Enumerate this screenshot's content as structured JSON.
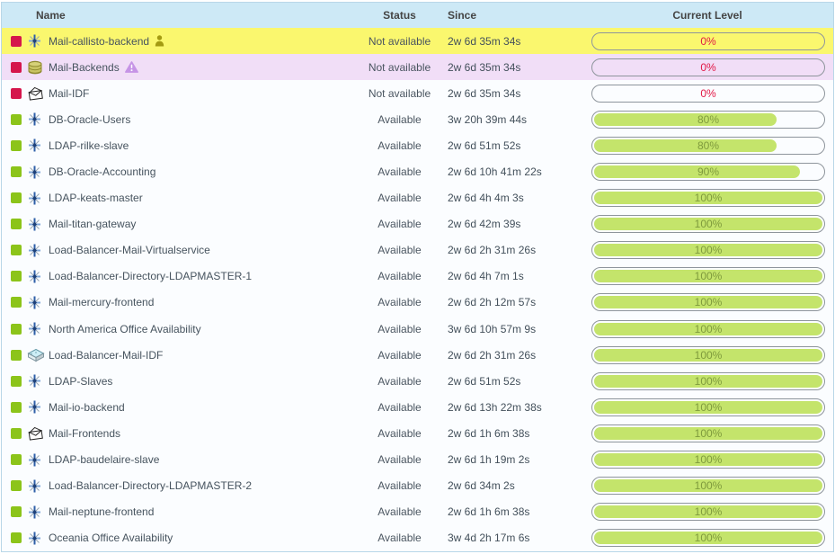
{
  "header": {
    "name": "Name",
    "status": "Status",
    "since": "Since",
    "current_level": "Current Level"
  },
  "colors": {
    "header_bg": "#cde9f6",
    "row_yellow": "#faf76e",
    "row_lavender": "#f1def7",
    "row_plain": "#fbfdff",
    "critical_red": "#d5164c",
    "ok_green": "#8cc41a",
    "bar_fill": "#c4e46b",
    "bar_text_ok": "#7f9b3d",
    "bar_text_critical": "#e11745"
  },
  "rows": [
    {
      "name": "Mail-callisto-backend",
      "icon": "business-process",
      "badge": "person",
      "status": "Not available",
      "since": "2w 6d 35m 34s",
      "level": 0,
      "variant": "yellow",
      "state": "critical"
    },
    {
      "name": "Mail-Backends",
      "icon": "database",
      "badge": "warning",
      "status": "Not available",
      "since": "2w 6d 35m 34s",
      "level": 0,
      "variant": "lavender",
      "state": "critical"
    },
    {
      "name": "Mail-IDF",
      "icon": "envelope",
      "badge": null,
      "status": "Not available",
      "since": "2w 6d 35m 34s",
      "level": 0,
      "variant": "plain",
      "state": "critical"
    },
    {
      "name": "DB-Oracle-Users",
      "icon": "business-process",
      "badge": null,
      "status": "Available",
      "since": "3w 20h 39m 44s",
      "level": 80,
      "variant": "plain",
      "state": "ok"
    },
    {
      "name": "LDAP-rilke-slave",
      "icon": "business-process",
      "badge": null,
      "status": "Available",
      "since": "2w 6d 51m 52s",
      "level": 80,
      "variant": "plain",
      "state": "ok"
    },
    {
      "name": "DB-Oracle-Accounting",
      "icon": "business-process",
      "badge": null,
      "status": "Available",
      "since": "2w 6d 10h 41m 22s",
      "level": 90,
      "variant": "plain",
      "state": "ok"
    },
    {
      "name": "LDAP-keats-master",
      "icon": "business-process",
      "badge": null,
      "status": "Available",
      "since": "2w 6d 4h 4m 3s",
      "level": 100,
      "variant": "plain",
      "state": "ok"
    },
    {
      "name": "Mail-titan-gateway",
      "icon": "business-process",
      "badge": null,
      "status": "Available",
      "since": "2w 6d 42m 39s",
      "level": 100,
      "variant": "plain",
      "state": "ok"
    },
    {
      "name": "Load-Balancer-Mail-Virtualservice",
      "icon": "business-process",
      "badge": null,
      "status": "Available",
      "since": "2w 6d 2h 31m 26s",
      "level": 100,
      "variant": "plain",
      "state": "ok"
    },
    {
      "name": "Load-Balancer-Directory-LDAPMASTER-1",
      "icon": "business-process",
      "badge": null,
      "status": "Available",
      "since": "2w 6d 4h 7m 1s",
      "level": 100,
      "variant": "plain",
      "state": "ok"
    },
    {
      "name": "Mail-mercury-frontend",
      "icon": "business-process",
      "badge": null,
      "status": "Available",
      "since": "2w 6d 2h 12m 57s",
      "level": 100,
      "variant": "plain",
      "state": "ok"
    },
    {
      "name": "North America Office Availability",
      "icon": "business-process",
      "badge": null,
      "status": "Available",
      "since": "3w 6d 10h 57m 9s",
      "level": 100,
      "variant": "plain",
      "state": "ok"
    },
    {
      "name": "Load-Balancer-Mail-IDF",
      "icon": "switch",
      "badge": null,
      "status": "Available",
      "since": "2w 6d 2h 31m 26s",
      "level": 100,
      "variant": "plain",
      "state": "ok"
    },
    {
      "name": "LDAP-Slaves",
      "icon": "business-process",
      "badge": null,
      "status": "Available",
      "since": "2w 6d 51m 52s",
      "level": 100,
      "variant": "plain",
      "state": "ok"
    },
    {
      "name": "Mail-io-backend",
      "icon": "business-process",
      "badge": null,
      "status": "Available",
      "since": "2w 6d 13h 22m 38s",
      "level": 100,
      "variant": "plain",
      "state": "ok"
    },
    {
      "name": "Mail-Frontends",
      "icon": "envelope",
      "badge": null,
      "status": "Available",
      "since": "2w 6d 1h 6m 38s",
      "level": 100,
      "variant": "plain",
      "state": "ok"
    },
    {
      "name": "LDAP-baudelaire-slave",
      "icon": "business-process",
      "badge": null,
      "status": "Available",
      "since": "2w 6d 1h 19m 2s",
      "level": 100,
      "variant": "plain",
      "state": "ok"
    },
    {
      "name": "Load-Balancer-Directory-LDAPMASTER-2",
      "icon": "business-process",
      "badge": null,
      "status": "Available",
      "since": "2w 6d 34m 2s",
      "level": 100,
      "variant": "plain",
      "state": "ok"
    },
    {
      "name": "Mail-neptune-frontend",
      "icon": "business-process",
      "badge": null,
      "status": "Available",
      "since": "2w 6d 1h 6m 38s",
      "level": 100,
      "variant": "plain",
      "state": "ok"
    },
    {
      "name": "Oceania Office Availability",
      "icon": "business-process",
      "badge": null,
      "status": "Available",
      "since": "3w 4d 2h 17m 6s",
      "level": 100,
      "variant": "plain",
      "state": "ok"
    }
  ]
}
